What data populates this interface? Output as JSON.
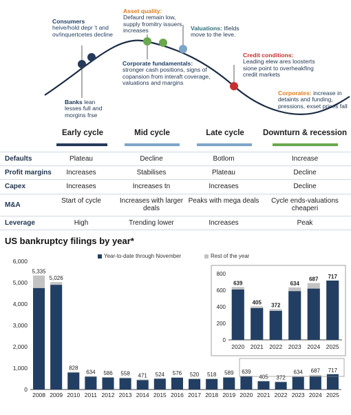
{
  "colors": {
    "navy": "#25395a",
    "steel": "#7ea5c8",
    "green": "#6aa84f",
    "darkbar": "#223f63",
    "greybar": "#c3c3c3",
    "red": "#c62f2f",
    "orange": "#e07b1a"
  },
  "cycle": {
    "annotations": {
      "consumers_title": "Consumers",
      "consumers_text": "heive/hold depr 't and ov/inquertcetes decline",
      "asset_title": "Asset quality:",
      "asset_text": "Defaurd remain low, supply fromitry issuers increases",
      "valuations_title": "Valuations:",
      "valuations_text": "Ifields move to the leve.",
      "banks_title": "Banks",
      "banks_text": "lean lesses full and morgins frse",
      "corp_fund_title": "Corporate fundamentals:",
      "corp_fund_text": "stronger cash positions, signs of copansion from interaft coverage, valuations and margins",
      "credit_title": "Credit conditions:",
      "credit_text": "Leading elew ares loosterts sione point to overheakfing credit markets",
      "corporates_title": "Corporates:",
      "corporates_text": "increase in detaints and funding, pressions, exset prices fall"
    },
    "phases": [
      "Early cycle",
      "Mid cycle",
      "Late cycle",
      "Downturn & recession"
    ],
    "rows": [
      {
        "label": "Defaults",
        "values": [
          "Plateau",
          "Decline",
          "Botlom",
          "Increase"
        ]
      },
      {
        "label": "Profit margins",
        "values": [
          "Increases",
          "Stabilises",
          "Plateau",
          "Decline"
        ]
      },
      {
        "label": "Capex",
        "values": [
          "Increases",
          "Increases tn",
          "Increases",
          "Decline"
        ]
      },
      {
        "label": "M&A",
        "values": [
          "Start of cycle",
          "Increases with larger deals",
          "Peaks with mega deals",
          "Cycle ends-valuations cheaperi"
        ]
      },
      {
        "label": "Leverage",
        "values": [
          "High",
          "Trending lower",
          "Increases",
          "Peak"
        ]
      }
    ]
  },
  "bankruptcy": {
    "title": "US bankruptcy filings by year*",
    "legend": [
      "Year-to-date through November",
      "Rest of the year"
    ]
  },
  "chart_data": [
    {
      "type": "bar",
      "stacked": true,
      "categories": [
        "2008",
        "2009",
        "2010",
        "2011",
        "2012",
        "2013",
        "2014",
        "2015",
        "2016",
        "2017",
        "2018",
        "2019",
        "2020",
        "2021",
        "2022",
        "2023",
        "2024",
        "2025"
      ],
      "series": [
        {
          "name": "Year-to-date through November",
          "values": [
            4750,
            4900,
            790,
            600,
            560,
            530,
            440,
            500,
            550,
            490,
            490,
            560,
            610,
            385,
            350,
            590,
            620,
            717
          ]
        },
        {
          "name": "Rest of the year",
          "values": [
            585,
            126,
            38,
            34,
            26,
            28,
            31,
            24,
            26,
            30,
            28,
            29,
            29,
            20,
            22,
            44,
            67,
            0
          ]
        }
      ],
      "totals": [
        5335,
        5026,
        828,
        634,
        586,
        558,
        471,
        524,
        576,
        520,
        518,
        589,
        639,
        405,
        372,
        634,
        687,
        717
      ],
      "ylim": [
        0,
        6000
      ],
      "yticks": [
        0,
        1000,
        2000,
        3000,
        4000,
        5000,
        6000
      ],
      "ytick_labels": [
        "0",
        "1,000",
        "2,000",
        "3,000",
        "4,000",
        "5,000",
        "6,000"
      ],
      "legend": "top"
    },
    {
      "type": "bar",
      "stacked": true,
      "inset": true,
      "categories": [
        "2020",
        "2021",
        "2022",
        "2023",
        "2024",
        "2025"
      ],
      "series": [
        {
          "name": "Year-to-date through November",
          "values": [
            610,
            385,
            350,
            590,
            620,
            717
          ]
        },
        {
          "name": "Rest of the year",
          "values": [
            29,
            20,
            22,
            44,
            67,
            0
          ]
        }
      ],
      "totals": [
        639,
        405,
        372,
        634,
        687,
        717
      ],
      "ylim": [
        0,
        800
      ],
      "yticks": [
        0,
        200,
        400,
        600,
        800
      ],
      "ytick_labels": [
        "0",
        "200",
        "400",
        "600",
        "800"
      ]
    }
  ]
}
